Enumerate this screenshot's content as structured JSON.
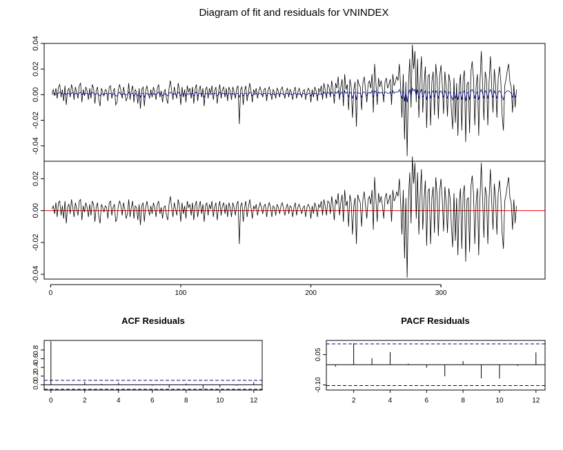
{
  "title": "Diagram of fit and residuals for VNINDEX",
  "colors": {
    "fit_line": "#000080",
    "actual_line": "#000000",
    "zero_line": "#ff0000",
    "ci_line": "#000080",
    "axis": "#000000"
  },
  "chart_data": [
    {
      "type": "line",
      "title": "",
      "xlim": [
        -5,
        380
      ],
      "ylim": [
        -0.052,
        0.04
      ],
      "x_ticks": [
        0,
        100,
        200,
        300
      ],
      "x_tick_labels": [
        "",
        "",
        "",
        ""
      ],
      "y_ticks": [
        -0.04,
        -0.02,
        0.0,
        0.02,
        0.04
      ],
      "y_tick_labels": [
        "-0.04",
        "-0.02",
        "0.00",
        "0.02",
        "0.04"
      ],
      "n": 369,
      "series": [
        {
          "role": "actual",
          "values": [
            0.001,
            0.004,
            -0.001,
            0.005,
            -0.003,
            0.006,
            0.008,
            -0.002,
            0.004,
            -0.005,
            0.007,
            -0.008,
            0.003,
            0.005,
            -0.002,
            0.008,
            0.004,
            -0.004,
            0.006,
            0.002,
            -0.003,
            0.007,
            0.009,
            -0.006,
            0.004,
            -0.001,
            0.006,
            0.003,
            -0.004,
            0.005,
            -0.003,
            0.008,
            0.005,
            -0.007,
            0.003,
            0.006,
            -0.004,
            -0.009,
            0.005,
            0.002,
            -0.001,
            0.004,
            0.003,
            -0.005,
            0.006,
            0.007,
            -0.003,
            0.002,
            0.005,
            -0.008,
            -0.006,
            0.004,
            0.008,
            0.003,
            -0.003,
            0.006,
            0.001,
            -0.005,
            -0.002,
            0.009,
            -0.004,
            0.003,
            0.007,
            -0.006,
            0.004,
            0.002,
            -0.007,
            0.005,
            -0.011,
            0.004,
            0.006,
            -0.009,
            0.003,
            0.007,
            0.001,
            -0.003,
            0.004,
            -0.002,
            0.006,
            0.002,
            -0.004,
            0.005,
            0.008,
            -0.002,
            0.003,
            -0.006,
            0.002,
            0.004,
            -0.003,
            -0.007,
            0.005,
            0.011,
            0.003,
            -0.004,
            0.006,
            0.001,
            -0.003,
            0.009,
            0.004,
            -0.008,
            0.006,
            -0.002,
            0.004,
            -0.006,
            0.007,
            0.002,
            0.005,
            -0.003,
            0.006,
            -0.007,
            0.004,
            0.008,
            -0.005,
            0.003,
            0.007,
            -0.002,
            0.005,
            -0.009,
            0.004,
            0.006,
            -0.003,
            0.005,
            0.001,
            0.007,
            -0.004,
            0.003,
            0.006,
            -0.007,
            0.002,
            0.008,
            -0.003,
            0.004,
            0.006,
            -0.002,
            0.005,
            -0.005,
            0.006,
            0.003,
            -0.004,
            0.006,
            0.002,
            -0.003,
            0.005,
            0.007,
            -0.023,
            0.004,
            0.006,
            -0.008,
            0.003,
            0.007,
            -0.005,
            0.002,
            0.009,
            0.003,
            -0.006,
            0.004,
            0.001,
            0.005,
            -0.003,
            0.003,
            0.006,
            0.002,
            -0.002,
            0.004,
            0.005,
            -0.005,
            0.003,
            0.006,
            0.002,
            -0.004,
            0.004,
            0.002,
            -0.003,
            0.005,
            0.003,
            -0.002,
            0.004,
            0.006,
            0.001,
            -0.003,
            0.003,
            0.005,
            -0.002,
            0.004,
            0.002,
            -0.004,
            0.003,
            0.006,
            -0.003,
            0.002,
            0.005,
            0.001,
            -0.002,
            0.003,
            0.004,
            -0.004,
            0.002,
            0.005,
            0.003,
            -0.006,
            0.004,
            -0.002,
            0.006,
            0.003,
            -0.005,
            0.005,
            0.002,
            0.007,
            -0.004,
            0.009,
            0.004,
            -0.003,
            0.008,
            0.006,
            -0.002,
            0.011,
            0.004,
            -0.007,
            0.009,
            0.005,
            0.014,
            -0.004,
            0.006,
            0.012,
            -0.009,
            0.016,
            0.004,
            0.008,
            -0.012,
            0.012,
            0.006,
            -0.018,
            0.004,
            0.01,
            -0.025,
            0.012,
            0.008,
            0.006,
            -0.012,
            0.009,
            0.014,
            0.004,
            -0.006,
            0.008,
            0.011,
            0.005,
            0.016,
            -0.014,
            0.024,
            0.009,
            -0.008,
            0.013,
            0.006,
            0.011,
            0.004,
            -0.006,
            0.01,
            0.013,
            0.005,
            0.008,
            0.012,
            -0.008,
            0.016,
            0.007,
            0.01,
            0.014,
            0.011,
            0.024,
            0.006,
            -0.018,
            0.016,
            -0.035,
            0.01,
            -0.048,
            0.008,
            0.028,
            -0.01,
            0.039,
            0.02,
            0.034,
            -0.006,
            0.028,
            -0.018,
            0.012,
            0.03,
            -0.014,
            0.008,
            0.022,
            -0.026,
            0.014,
            0.016,
            -0.024,
            0.01,
            0.018,
            -0.016,
            0.024,
            0.012,
            -0.019,
            0.014,
            0.023,
            0.008,
            -0.015,
            0.018,
            0.006,
            -0.017,
            0.016,
            0.01,
            -0.012,
            -0.027,
            0.013,
            -0.022,
            0.009,
            -0.032,
            0.006,
            0.016,
            -0.028,
            0.012,
            0.019,
            -0.037,
            0.008,
            0.01,
            -0.03,
            0.018,
            0.026,
            0.013,
            -0.024,
            0.006,
            0.016,
            -0.032,
            0.01,
            0.034,
            0.008,
            -0.02,
            0.018,
            0.012,
            -0.024,
            0.01,
            0.03,
            0.006,
            -0.014,
            0.02,
            0.008,
            -0.018,
            0.013,
            0.022,
            0.01,
            -0.016,
            -0.028,
            0.007,
            0.012,
            0.019,
            0.024,
            0.01,
            0.006,
            -0.014,
            0.008,
            -0.01,
            0.004
          ]
        },
        {
          "role": "fitted",
          "values": [
            0.0,
            0.001,
            0.001,
            0.0,
            0.001,
            0.001,
            0.002,
            0.001,
            0.001,
            0.0,
            0.001,
            0.0,
            0.001,
            0.001,
            0.0,
            0.001,
            0.002,
            0.0,
            0.001,
            0.001,
            0.0,
            0.001,
            0.002,
            0.0,
            0.001,
            0.0,
            0.001,
            0.001,
            0.0,
            0.001,
            0.0,
            0.002,
            0.001,
            0.0,
            0.001,
            0.001,
            0.0,
            -0.001,
            0.001,
            0.0,
            0.0,
            0.001,
            0.001,
            0.0,
            0.001,
            0.001,
            0.0,
            0.0,
            0.001,
            -0.001,
            -0.001,
            0.001,
            0.002,
            0.0,
            0.0,
            0.001,
            0.0,
            0.0,
            0.0,
            0.002,
            0.0,
            0.001,
            0.001,
            -0.001,
            0.001,
            0.0,
            -0.001,
            0.001,
            -0.002,
            0.001,
            0.001,
            -0.002,
            0.001,
            0.001,
            0.0,
            0.0,
            0.001,
            0.0,
            0.001,
            0.0,
            0.0,
            0.001,
            0.002,
            0.0,
            0.001,
            -0.001,
            0.0,
            0.001,
            0.0,
            -0.001,
            0.001,
            0.002,
            0.001,
            0.0,
            0.001,
            0.0,
            0.0,
            0.002,
            0.001,
            -0.001,
            0.001,
            0.0,
            0.001,
            -0.001,
            0.001,
            0.0,
            0.001,
            0.0,
            0.001,
            -0.001,
            0.001,
            0.002,
            -0.001,
            0.001,
            0.001,
            0.0,
            0.001,
            -0.002,
            0.001,
            0.001,
            0.0,
            0.001,
            0.0,
            0.001,
            0.0,
            0.001,
            0.001,
            -0.001,
            0.0,
            0.002,
            0.0,
            0.001,
            0.001,
            0.0,
            0.001,
            -0.001,
            0.001,
            0.001,
            0.0,
            0.001,
            0.0,
            0.0,
            0.001,
            0.001,
            -0.002,
            0.001,
            0.001,
            -0.001,
            0.001,
            0.001,
            -0.001,
            0.0,
            0.002,
            0.001,
            -0.001,
            0.001,
            0.0,
            0.001,
            0.0,
            0.001,
            0.001,
            0.0,
            0.0,
            0.001,
            0.001,
            -0.001,
            0.001,
            0.001,
            0.0,
            0.0,
            0.001,
            0.0,
            0.0,
            0.001,
            0.001,
            0.0,
            0.001,
            0.001,
            0.0,
            0.0,
            0.001,
            0.001,
            0.0,
            0.001,
            0.0,
            0.0,
            0.001,
            0.001,
            0.0,
            0.0,
            0.001,
            0.0,
            0.0,
            0.001,
            0.001,
            0.0,
            0.0,
            0.001,
            0.001,
            -0.001,
            0.001,
            0.0,
            0.001,
            0.001,
            -0.001,
            0.001,
            0.0,
            0.001,
            -0.001,
            0.002,
            0.001,
            0.0,
            0.002,
            0.001,
            0.0,
            0.002,
            0.001,
            -0.001,
            0.002,
            0.001,
            0.003,
            -0.001,
            0.001,
            0.002,
            -0.002,
            0.003,
            0.001,
            0.002,
            -0.002,
            0.002,
            0.001,
            -0.003,
            0.001,
            0.002,
            -0.004,
            0.002,
            0.001,
            0.001,
            -0.002,
            0.002,
            0.002,
            0.001,
            -0.001,
            0.001,
            0.002,
            0.001,
            0.003,
            -0.002,
            0.003,
            0.002,
            -0.001,
            0.002,
            0.001,
            0.002,
            0.001,
            -0.001,
            0.002,
            0.002,
            0.001,
            0.001,
            0.002,
            -0.001,
            0.003,
            0.001,
            0.002,
            0.002,
            0.002,
            0.004,
            0.001,
            -0.003,
            0.003,
            -0.005,
            0.002,
            -0.006,
            0.001,
            0.004,
            -0.002,
            0.005,
            0.003,
            0.004,
            -0.001,
            0.004,
            -0.003,
            0.002,
            0.004,
            -0.002,
            0.001,
            0.003,
            -0.004,
            0.002,
            0.002,
            -0.003,
            0.002,
            0.003,
            -0.002,
            0.003,
            0.002,
            -0.003,
            0.002,
            0.003,
            0.001,
            -0.002,
            0.003,
            0.001,
            -0.003,
            0.002,
            0.002,
            -0.002,
            -0.004,
            0.002,
            -0.003,
            0.001,
            -0.004,
            0.001,
            0.002,
            -0.004,
            0.002,
            0.003,
            -0.005,
            0.001,
            0.002,
            -0.004,
            0.003,
            0.004,
            0.002,
            -0.003,
            0.001,
            0.002,
            -0.004,
            0.002,
            0.004,
            0.001,
            -0.003,
            0.003,
            0.002,
            -0.003,
            0.002,
            0.004,
            0.001,
            -0.002,
            0.003,
            0.001,
            -0.003,
            0.002,
            0.003,
            0.002,
            -0.002,
            -0.004,
            0.001,
            0.002,
            0.003,
            0.003,
            0.002,
            0.001,
            -0.002,
            0.001,
            -0.002,
            0.001
          ]
        }
      ]
    },
    {
      "type": "line",
      "title": "",
      "xlim": [
        -5,
        380
      ],
      "ylim": [
        -0.043,
        0.031
      ],
      "x_ticks": [
        0,
        100,
        200,
        300
      ],
      "x_tick_labels": [
        "0",
        "100",
        "200",
        "300"
      ],
      "y_ticks": [
        -0.04,
        -0.02,
        0.0,
        0.02
      ],
      "y_tick_labels": [
        "-0.04",
        "-0.02",
        "0.00",
        "0.02"
      ],
      "hline": 0.0,
      "series": [
        {
          "role": "residuals",
          "derived_from": "actual_minus_fitted"
        }
      ]
    },
    {
      "type": "bar",
      "title": "ACF Residuals",
      "xlim": [
        -0.4,
        12.5
      ],
      "ylim": [
        -0.12,
        1.02
      ],
      "x_ticks": [
        0,
        2,
        4,
        6,
        8,
        10,
        12
      ],
      "x_tick_labels": [
        "0",
        "2",
        "4",
        "6",
        "8",
        "10",
        "12"
      ],
      "y_ticks": [
        0.0,
        0.2,
        0.4,
        0.6,
        0.8
      ],
      "y_tick_labels": [
        "0.0",
        "0.2",
        "0.4",
        "0.6",
        "0.8"
      ],
      "lags": [
        0,
        1,
        2,
        3,
        4,
        5,
        6,
        7,
        8,
        9,
        10,
        11,
        12
      ],
      "values": [
        1.0,
        -0.01,
        0.07,
        0.02,
        0.05,
        0.0,
        -0.02,
        -0.07,
        0.03,
        -0.09,
        -0.06,
        -0.02,
        0.06
      ],
      "ci": 0.103,
      "hline": 0.0
    },
    {
      "type": "bar",
      "title": "PACF Residuals",
      "xlim": [
        0.5,
        12.5
      ],
      "ylim": [
        -0.125,
        0.12
      ],
      "x_ticks": [
        2,
        4,
        6,
        8,
        10,
        12
      ],
      "x_tick_labels": [
        "2",
        "4",
        "6",
        "8",
        "10",
        "12"
      ],
      "y_ticks": [
        -0.1,
        0.05
      ],
      "y_tick_labels": [
        "-0.10",
        "0.05"
      ],
      "lags": [
        1,
        2,
        3,
        4,
        5,
        6,
        7,
        8,
        9,
        10,
        11,
        12
      ],
      "values": [
        -0.01,
        0.107,
        0.032,
        0.062,
        0.005,
        -0.015,
        -0.057,
        0.018,
        -0.067,
        -0.068,
        -0.006,
        0.061
      ],
      "ci": 0.103,
      "hline": 0.0
    }
  ]
}
